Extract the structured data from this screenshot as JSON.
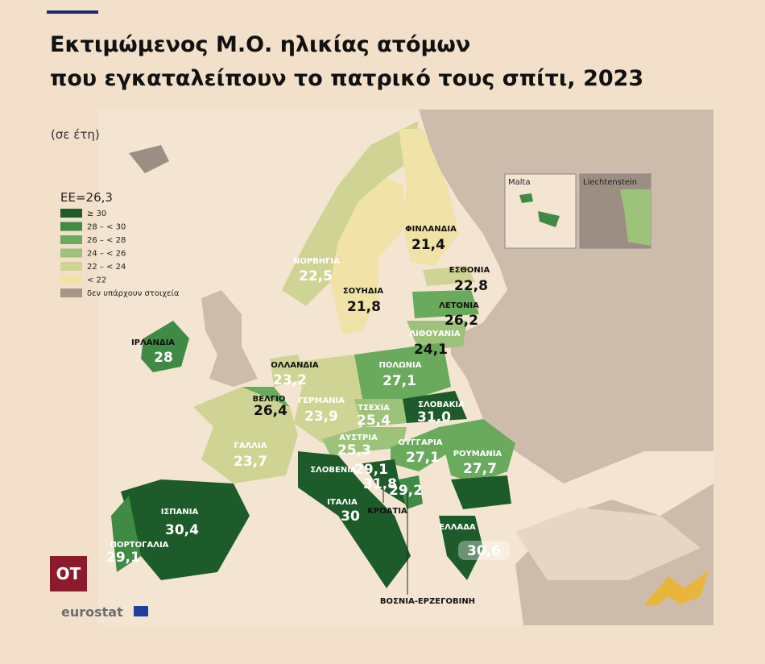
{
  "header": {
    "title": [
      "Εκτιμώμενος Μ.Ο. ηλικίας ατόμων",
      "που εγκαταλείπουν το πατρικό τους σπίτι, 2023"
    ],
    "subtitle": "(σε έτη)"
  },
  "legend": {
    "title": "ΕΕ=26,3",
    "items": [
      "≥ 30",
      "28 – < 30",
      "26 – < 28",
      "24 – < 26",
      "22 – < 24",
      "< 22",
      "δεν υπάρχουν στοιχεία"
    ]
  },
  "countries": [
    {
      "name": "ΦΙΝΛΑΝΔΙΑ",
      "value": "21,4"
    },
    {
      "name": "ΝΟΡΒΗΓΙΑ",
      "value": "22,5"
    },
    {
      "name": "ΕΣΘΟΝΙΑ",
      "value": "22,8"
    },
    {
      "name": "ΣΟΥΗΔΙΑ",
      "value": "21,8"
    },
    {
      "name": "ΛΕΤΟΝΙΑ",
      "value": "26,2"
    },
    {
      "name": "ΛΙΘΟΥΑΝΙΑ",
      "value": "24,1"
    },
    {
      "name": "ΙΡΛΑΝΔΙΑ",
      "value": "28"
    },
    {
      "name": "ΟΛΛΑΝΔΙΑ",
      "value": "23,2"
    },
    {
      "name": "ΠΟΛΩΝΙΑ",
      "value": "27,1"
    },
    {
      "name": "ΒΕΛΓΙΟ",
      "value": "26,4"
    },
    {
      "name": "ΓΕΡΜΑΝΙΑ",
      "value": "23,9"
    },
    {
      "name": "ΤΣΕΧΙΑ",
      "value": "25,4"
    },
    {
      "name": "ΣΛΟΒΑΚΙΑ",
      "value": "31,0"
    },
    {
      "name": "ΑΥΣΤΡΙΑ",
      "value": "25,3"
    },
    {
      "name": "ΟΥΓΓΑΡΙΑ",
      "value": "27,1"
    },
    {
      "name": "ΡΟΥΜΑΝΙΑ",
      "value": "27,7"
    },
    {
      "name": "ΓΑΛΛΙΑ",
      "value": "23,7"
    },
    {
      "name": "ΣΛΟΒΕΝΙΑ",
      "value": "29,1"
    },
    {
      "name": "ΚΡΟΑΤΙΑ",
      "value": "31,8"
    },
    {
      "name": "ΒΟΣΝΙΑ-ΕΡΖΕΓΟΒΙΝΗ",
      "value": "29,2"
    },
    {
      "name": "ΙΤΑΛΙΑ",
      "value": "30"
    },
    {
      "name": "ΙΣΠΑΝΙΑ",
      "value": "30,4"
    },
    {
      "name": "ΕΛΛΑΔΑ",
      "value": "30,6"
    },
    {
      "name": "ΠΟΡΤΟΓΑΛΙΑ",
      "value": "29,1"
    }
  ],
  "insets": [
    "Malta",
    "Liechtenstein"
  ],
  "logos": {
    "badge": "OT",
    "source": "eurostat"
  }
}
